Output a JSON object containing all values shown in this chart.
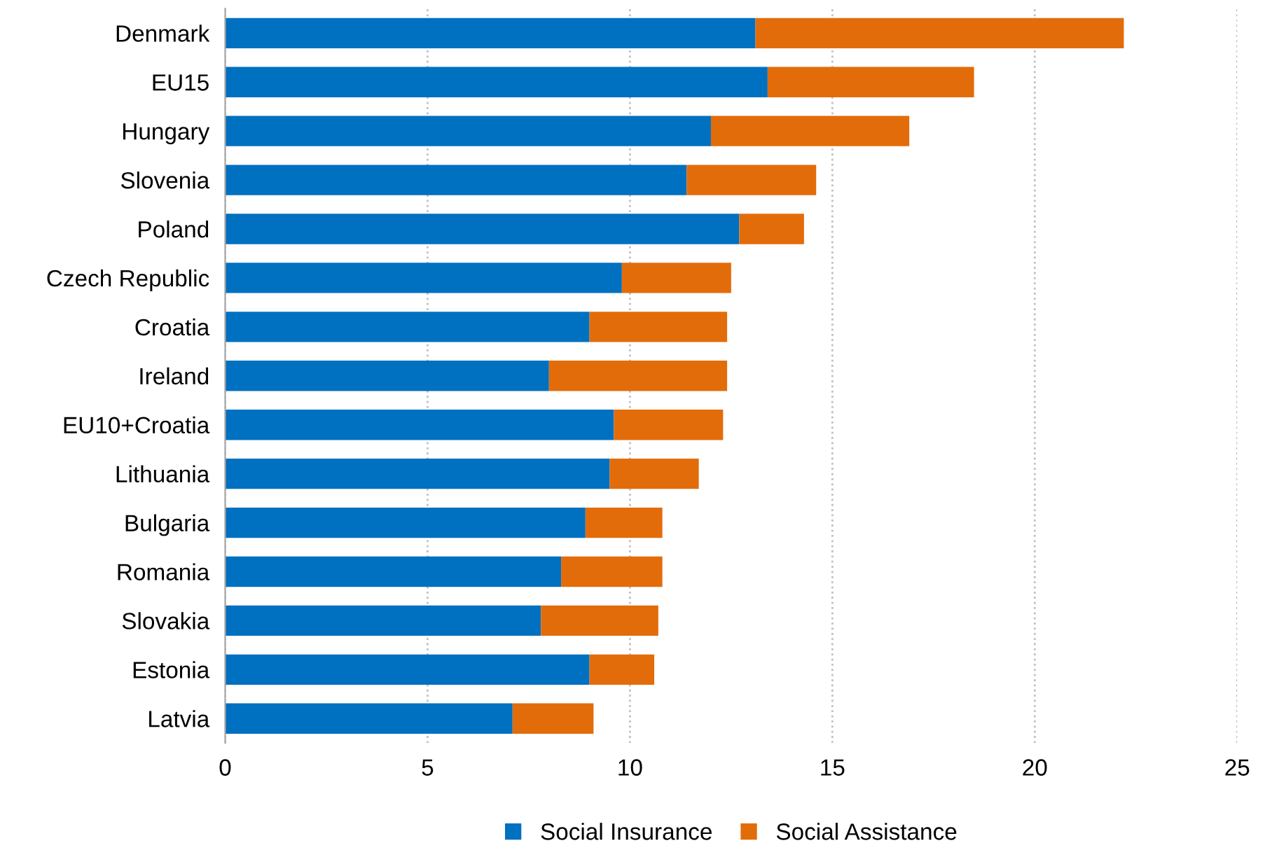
{
  "chart_data": {
    "type": "bar",
    "orientation": "horizontal",
    "stacked": true,
    "categories": [
      "Denmark",
      "EU15",
      "Hungary",
      "Slovenia",
      "Poland",
      "Czech Republic",
      "Croatia",
      "Ireland",
      "EU10+Croatia",
      "Lithuania",
      "Bulgaria",
      "Romania",
      "Slovakia",
      "Estonia",
      "Latvia"
    ],
    "series": [
      {
        "name": "Social Insurance",
        "color": "#0070c0",
        "values": [
          13.1,
          13.4,
          12.0,
          11.4,
          12.7,
          9.8,
          9.0,
          8.0,
          9.6,
          9.5,
          8.9,
          8.3,
          7.8,
          9.0,
          7.1
        ]
      },
      {
        "name": "Social Assistance",
        "color": "#e36c0a",
        "values": [
          9.1,
          5.1,
          4.9,
          3.2,
          1.6,
          2.7,
          3.4,
          4.4,
          2.7,
          2.2,
          1.9,
          2.5,
          2.9,
          1.6,
          2.0
        ]
      }
    ],
    "xlim": [
      0,
      25
    ],
    "xticks": [
      0,
      5,
      10,
      15,
      20,
      25
    ],
    "grid": "x",
    "legend": "bottom"
  }
}
